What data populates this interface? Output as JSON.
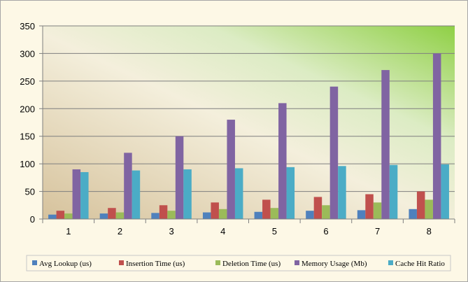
{
  "chart_data": {
    "type": "bar",
    "categories": [
      "1",
      "2",
      "3",
      "4",
      "5",
      "6",
      "7",
      "8"
    ],
    "series": [
      {
        "name": "Avg Lookup (us)",
        "color": "#4f81bd",
        "values": [
          8,
          10,
          11,
          12,
          13,
          15,
          16,
          18
        ]
      },
      {
        "name": "Insertion Time (us)",
        "color": "#c0504d",
        "values": [
          15,
          20,
          25,
          30,
          35,
          40,
          45,
          50
        ]
      },
      {
        "name": "Deletion Time (us)",
        "color": "#9bbb59",
        "values": [
          10,
          12,
          15,
          18,
          20,
          25,
          30,
          35
        ]
      },
      {
        "name": "Memory Usage (Mb)",
        "color": "#8064a2",
        "values": [
          90,
          120,
          150,
          180,
          210,
          240,
          270,
          300
        ]
      },
      {
        "name": "Cache Hit Ratio",
        "color": "#4bacc6",
        "values": [
          85,
          88,
          90,
          92,
          94,
          96,
          98,
          99
        ]
      }
    ],
    "ylim": [
      0,
      350
    ],
    "yticks": [
      0,
      50,
      100,
      150,
      200,
      250,
      300,
      350
    ],
    "grid": true,
    "legend_position": "bottom"
  }
}
